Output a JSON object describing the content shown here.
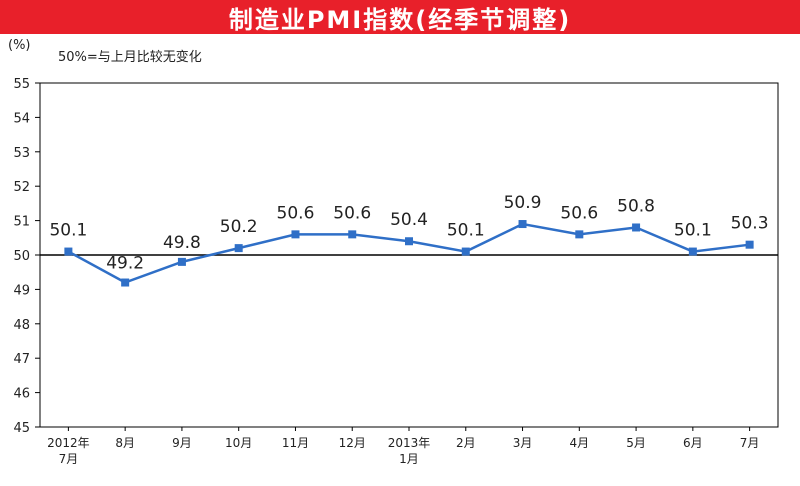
{
  "chart_data": {
    "type": "line",
    "title": "制造业PMI指数(经季节调整)",
    "unit": "(%)",
    "note": "50%=与上月比较无变化",
    "x": [
      "2012年\n7月",
      "8月",
      "9月",
      "10月",
      "11月",
      "12月",
      "2013年\n1月",
      "2月",
      "3月",
      "4月",
      "5月",
      "6月",
      "7月"
    ],
    "values": [
      50.1,
      49.2,
      49.8,
      50.2,
      50.6,
      50.6,
      50.4,
      50.1,
      50.9,
      50.6,
      50.8,
      50.1,
      50.3
    ],
    "value_labels": [
      "50.1",
      "49.2",
      "49.8",
      "50.2",
      "50.6",
      "50.6",
      "50.4",
      "50.1",
      "50.9",
      "50.6",
      "50.8",
      "50.1",
      "50.3"
    ],
    "yticks": [
      "45",
      "46",
      "47",
      "48",
      "49",
      "50",
      "51",
      "52",
      "53",
      "54",
      "55"
    ],
    "ylim": [
      45,
      55
    ],
    "reference_line": 50,
    "grid": false,
    "legend": "none",
    "colors": {
      "line": "#2f6fc7",
      "marker": "#2f6fc7",
      "reference": "#000000",
      "banner": "#e8202a"
    }
  }
}
